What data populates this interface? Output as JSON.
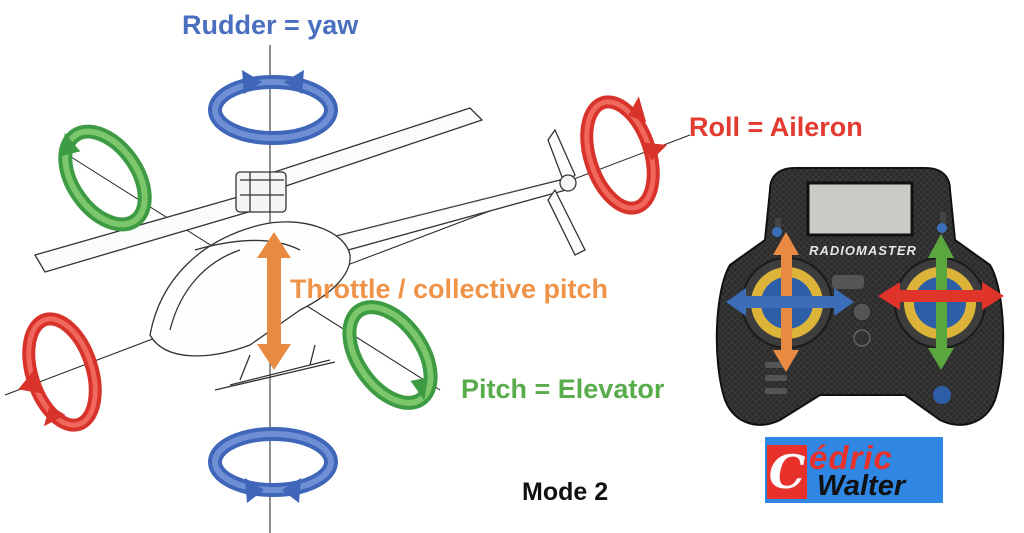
{
  "labels": {
    "rudder": "Rudder = yaw",
    "roll": "Roll = Aileron",
    "throttle": "Throttle / collective pitch",
    "pitch": "Pitch = Elevator",
    "mode": "Mode 2"
  },
  "transmitter": {
    "brand": "RADIOMASTER"
  },
  "logo": {
    "line1": "édric",
    "line2": "Walter",
    "initial": "C"
  },
  "colors": {
    "rudder": "#4a6fbf",
    "roll": "#e33b2f",
    "throttle": "#ee8a3a",
    "pitch": "#59ac4b",
    "logo_bg": "#2f86e3",
    "logo_red": "#e8312b"
  }
}
